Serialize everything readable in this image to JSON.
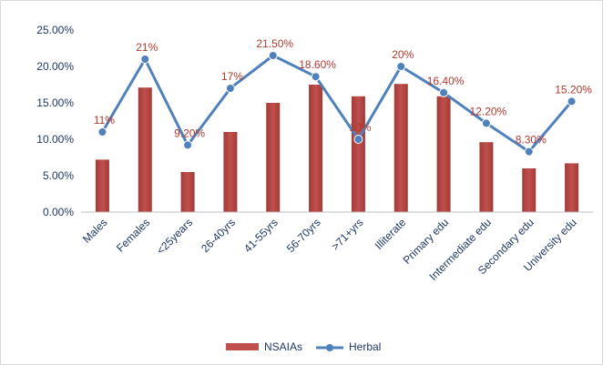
{
  "chart_data": {
    "type": "bar",
    "categories": [
      "Males",
      "Females",
      "<25years",
      "26-40yrs",
      "41-55yrs",
      "56-70yrs",
      ">71+yrs",
      "Illiterate",
      "Primary edu",
      "Intermediate edu",
      "Secondary edu",
      "University edu"
    ],
    "ylim": [
      0,
      0.25
    ],
    "yticks": [
      "0.00%",
      "5.00%",
      "10.00%",
      "15.00%",
      "20.00%",
      "25.00%"
    ],
    "grid": false,
    "legend_position": "bottom",
    "series": [
      {
        "name": "NSAIAs",
        "type": "bar",
        "color": "#c0504d",
        "values": [
          0.072,
          0.171,
          0.055,
          0.11,
          0.15,
          0.175,
          0.159,
          0.176,
          0.159,
          0.096,
          0.06,
          0.067
        ]
      },
      {
        "name": "Herbal",
        "type": "line",
        "color": "#4f81bd",
        "values": [
          0.11,
          0.21,
          0.092,
          0.17,
          0.215,
          0.186,
          0.1,
          0.2,
          0.164,
          0.122,
          0.083,
          0.152
        ],
        "labels": [
          "11%",
          "21%",
          "9.20%",
          "17%",
          "21.50%",
          "18.60%",
          "10%",
          "20%",
          "16.40%",
          "12.20%",
          "8.30%",
          "15.20%"
        ]
      }
    ]
  }
}
